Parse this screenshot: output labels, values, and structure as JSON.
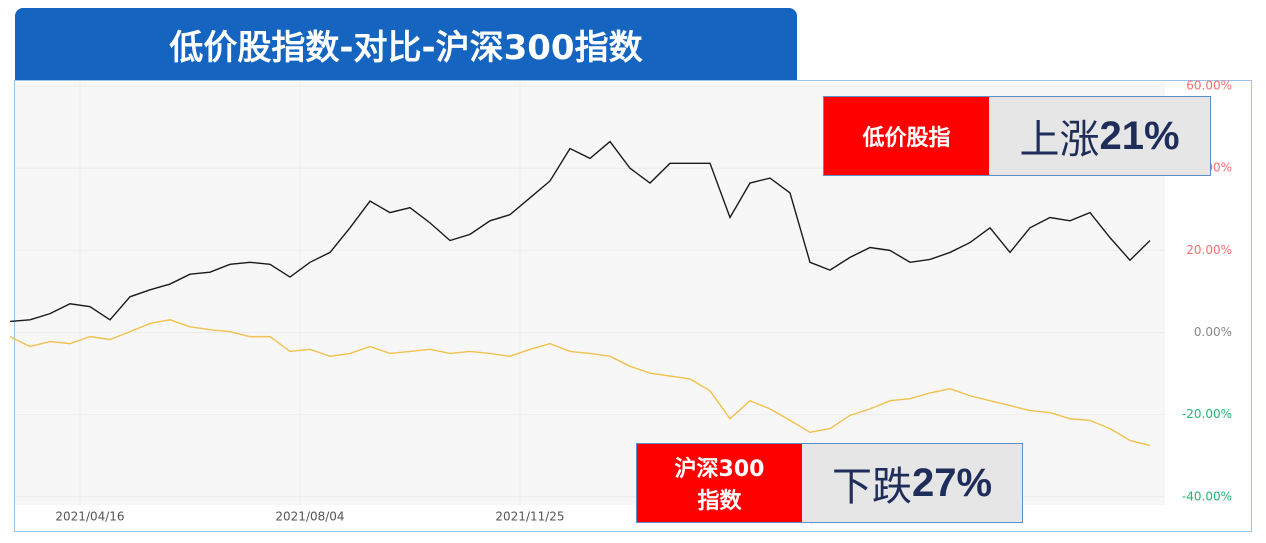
{
  "chart_data": {
    "type": "line",
    "title": "低价股指数-对比-沪深300指数",
    "categories": [
      null,
      null,
      null,
      null,
      "2021/04/16",
      null,
      null,
      null,
      null,
      null,
      null,
      null,
      null,
      null,
      null,
      "2021/08/04",
      null,
      null,
      null,
      null,
      null,
      null,
      null,
      null,
      null,
      null,
      "2021/11/25",
      null,
      null,
      null,
      null,
      null,
      null,
      null,
      null,
      null,
      null,
      null,
      null,
      null,
      null,
      null,
      null,
      null,
      null,
      null,
      null,
      null,
      null,
      null,
      null,
      null,
      null,
      null,
      null,
      null,
      null,
      null
    ],
    "series": [
      {
        "name": "低价股指",
        "color": "#1a1a1a",
        "values": [
          2.7,
          3.1,
          4.6,
          7.0,
          6.3,
          3.1,
          8.7,
          10.4,
          11.8,
          14.2,
          14.7,
          16.6,
          17.1,
          16.6,
          13.5,
          17.1,
          19.5,
          25.5,
          32.0,
          29.2,
          30.4,
          26.7,
          22.4,
          23.9,
          27.2,
          28.7,
          32.8,
          36.9,
          44.8,
          42.4,
          46.5,
          40.0,
          36.4,
          41.2,
          41.2,
          41.2,
          28.0,
          36.4,
          37.6,
          34.0,
          17.1,
          15.2,
          18.3,
          20.7,
          20.0,
          17.1,
          17.8,
          19.5,
          21.9,
          25.5,
          19.5,
          25.5,
          28.0,
          27.2,
          29.2,
          23.1,
          17.6,
          22.4
        ]
      },
      {
        "name": "沪深300指数",
        "color": "#f2c14e",
        "values": [
          -1.0,
          -3.4,
          -2.2,
          -2.7,
          -1.0,
          -1.7,
          0.2,
          2.2,
          3.1,
          1.4,
          0.7,
          0.2,
          -1.0,
          -1.0,
          -4.6,
          -4.1,
          -5.8,
          -5.1,
          -3.4,
          -5.1,
          -4.6,
          -4.1,
          -5.1,
          -4.6,
          -5.1,
          -5.8,
          -4.1,
          -2.7,
          -4.6,
          -5.1,
          -5.8,
          -8.2,
          -9.9,
          -10.6,
          -11.3,
          -14.2,
          -21.0,
          -16.6,
          -18.6,
          -21.4,
          -24.3,
          -23.4,
          -20.2,
          -18.6,
          -16.6,
          -16.1,
          -14.7,
          -13.7,
          -15.4,
          -16.6,
          -17.8,
          -19.0,
          -19.5,
          -21.0,
          -21.4,
          -23.4,
          -26.3,
          -27.5
        ]
      }
    ],
    "ylim": [
      -42,
      61
    ],
    "yticks": [
      {
        "value": -40,
        "label": "-40.00%"
      },
      {
        "value": -20,
        "label": "-20.00%"
      },
      {
        "value": 0,
        "label": "0.00%"
      },
      {
        "value": 20,
        "label": "20.00%"
      },
      {
        "value": 40,
        "label": "40.00%"
      },
      {
        "value": 60,
        "label": "60.00%"
      }
    ],
    "grid": true,
    "callouts": [
      {
        "change_word": "上涨",
        "change": "21%"
      },
      {
        "change_word": "下跌",
        "change": "27%"
      }
    ]
  }
}
